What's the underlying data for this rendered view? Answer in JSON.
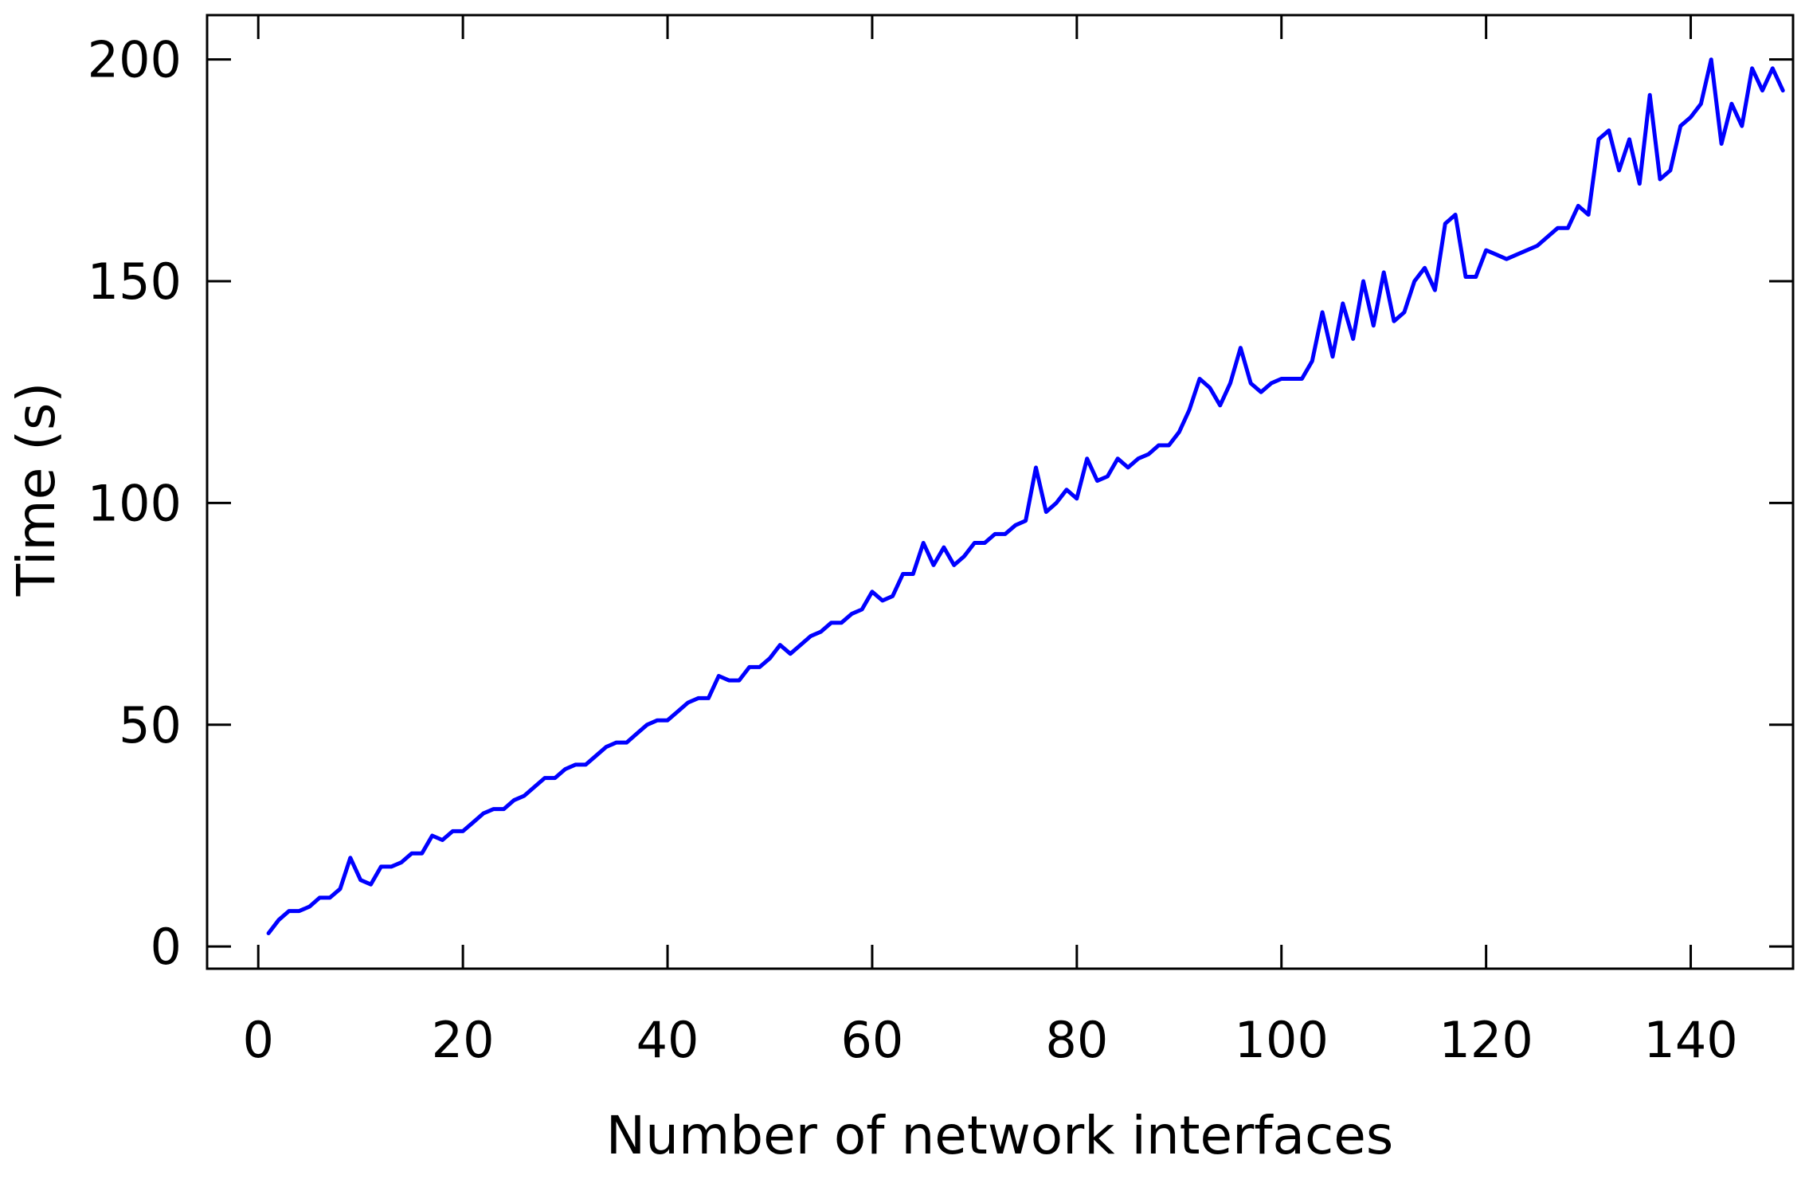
{
  "chart_data": {
    "type": "line",
    "title": "",
    "xlabel": "Number of network interfaces",
    "ylabel": "Time (s)",
    "xlim": [
      -5,
      150
    ],
    "ylim": [
      -5,
      210
    ],
    "xticks": [
      0,
      20,
      40,
      60,
      80,
      100,
      120,
      140
    ],
    "yticks": [
      0,
      50,
      100,
      150,
      200
    ],
    "grid": false,
    "legend": "none",
    "series": [
      {
        "color": "#0000ff",
        "x": [
          1,
          2,
          3,
          4,
          5,
          6,
          7,
          8,
          9,
          10,
          11,
          12,
          13,
          14,
          15,
          16,
          17,
          18,
          19,
          20,
          21,
          22,
          23,
          24,
          25,
          26,
          27,
          28,
          29,
          30,
          31,
          32,
          33,
          34,
          35,
          36,
          37,
          38,
          39,
          40,
          41,
          42,
          43,
          44,
          45,
          46,
          47,
          48,
          49,
          50,
          51,
          52,
          53,
          54,
          55,
          56,
          57,
          58,
          59,
          60,
          61,
          62,
          63,
          64,
          65,
          66,
          67,
          68,
          69,
          70,
          71,
          72,
          73,
          74,
          75,
          76,
          77,
          78,
          79,
          80,
          81,
          82,
          83,
          84,
          85,
          86,
          87,
          88,
          89,
          90,
          91,
          92,
          93,
          94,
          95,
          96,
          97,
          98,
          99,
          100,
          101,
          102,
          103,
          104,
          105,
          106,
          107,
          108,
          109,
          110,
          111,
          112,
          113,
          114,
          115,
          116,
          117,
          118,
          119,
          120,
          121,
          122,
          123,
          124,
          125,
          126,
          127,
          128,
          129,
          130,
          131,
          132,
          133,
          134,
          135,
          136,
          137,
          138,
          139,
          140,
          141,
          142,
          143,
          144,
          145,
          146,
          147,
          148,
          149
        ],
        "y": [
          3,
          6,
          8,
          8,
          9,
          11,
          11,
          13,
          20,
          15,
          14,
          18,
          18,
          19,
          21,
          21,
          25,
          24,
          26,
          26,
          28,
          30,
          31,
          31,
          33,
          34,
          36,
          38,
          38,
          40,
          41,
          41,
          43,
          45,
          46,
          46,
          48,
          50,
          51,
          51,
          53,
          55,
          56,
          56,
          61,
          60,
          60,
          63,
          63,
          65,
          68,
          66,
          68,
          70,
          71,
          73,
          73,
          75,
          76,
          80,
          78,
          79,
          84,
          84,
          91,
          86,
          90,
          86,
          88,
          91,
          91,
          93,
          93,
          95,
          96,
          108,
          98,
          100,
          103,
          101,
          110,
          105,
          106,
          110,
          108,
          110,
          111,
          113,
          113,
          116,
          121,
          128,
          126,
          122,
          127,
          135,
          127,
          125,
          127,
          128,
          128,
          128,
          132,
          143,
          133,
          145,
          137,
          150,
          140,
          152,
          141,
          143,
          150,
          153,
          148,
          163,
          165,
          151,
          151,
          157,
          156,
          155,
          156,
          157,
          158,
          160,
          162,
          162,
          167,
          165,
          182,
          184,
          175,
          182,
          172,
          192,
          173,
          175,
          185,
          187,
          190,
          200,
          181,
          190,
          185,
          198,
          193,
          198,
          193
        ]
      }
    ]
  }
}
